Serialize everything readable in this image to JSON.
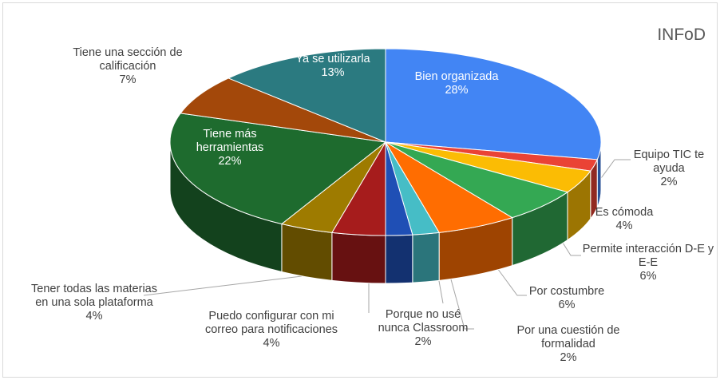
{
  "chart_data": {
    "type": "pie3d",
    "title": "INFoD",
    "categories": [
      "Bien organizada",
      "Equipo TIC te ayuda",
      "Es cómoda",
      "Permite interacción D-E y E-E",
      "Por costumbre",
      "Por una cuestión de formalidad",
      "Porque no usé nunca Classroom",
      "Puedo configurar con mi correo para notificaciones",
      "Tener todas las materias en una sola plataforma",
      "Tiene más herramientas",
      "Tiene una sección de calificación",
      "Ya se utilizarla"
    ],
    "values": [
      28,
      2,
      4,
      6,
      6,
      2,
      2,
      4,
      4,
      22,
      7,
      13
    ],
    "value_labels": [
      "28%",
      "2%",
      "4%",
      "6%",
      "6%",
      "2%",
      "2%",
      "4%",
      "4%",
      "22%",
      "7%",
      "13%"
    ],
    "colors": [
      "#4285f4",
      "#ea4335",
      "#fbbc04",
      "#34a853",
      "#ff6d01",
      "#46bdc6",
      "#1f4fb5",
      "#a61c1c",
      "#9e7b00",
      "#1e6b2e",
      "#a3480a",
      "#2b7a80"
    ]
  }
}
